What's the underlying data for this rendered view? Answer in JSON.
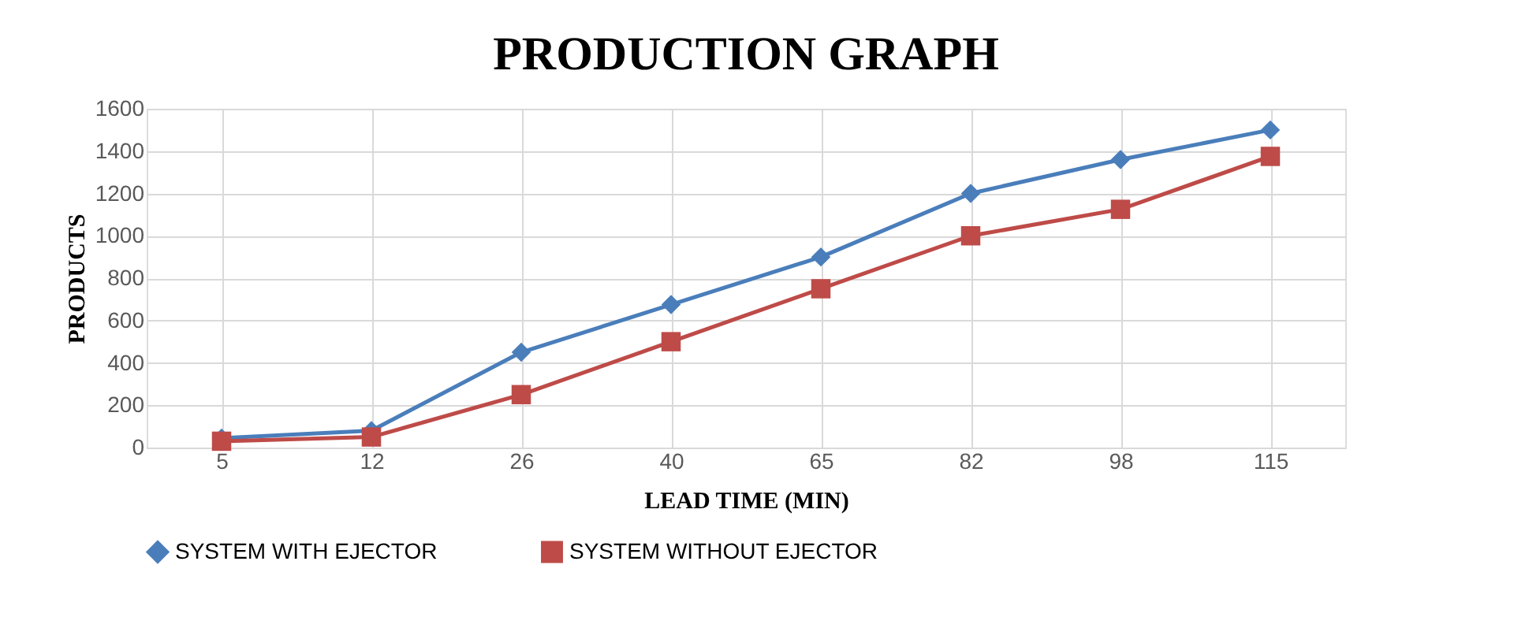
{
  "chart_data": {
    "type": "line",
    "title": "PRODUCTION GRAPH",
    "xlabel": "LEAD TIME (MIN)",
    "ylabel": "PRODUCTS",
    "categories": [
      "5",
      "12",
      "26",
      "40",
      "65",
      "82",
      "98",
      "115"
    ],
    "series": [
      {
        "name": "SYSTEM WITH EJECTOR",
        "color": "#4a7ebb",
        "marker": "diamond",
        "values": [
          45,
          80,
          450,
          675,
          900,
          1200,
          1360,
          1500
        ]
      },
      {
        "name": "SYSTEM WITHOUT EJECTOR",
        "color": "#be4b48",
        "marker": "square",
        "values": [
          30,
          50,
          250,
          500,
          750,
          1000,
          1125,
          1375
        ]
      }
    ],
    "ylim": [
      0,
      1600
    ],
    "yticks": [
      0,
      200,
      400,
      600,
      800,
      1000,
      1200,
      1400,
      1600
    ],
    "grid": true,
    "legend": "bottom",
    "line_style": "solid"
  }
}
